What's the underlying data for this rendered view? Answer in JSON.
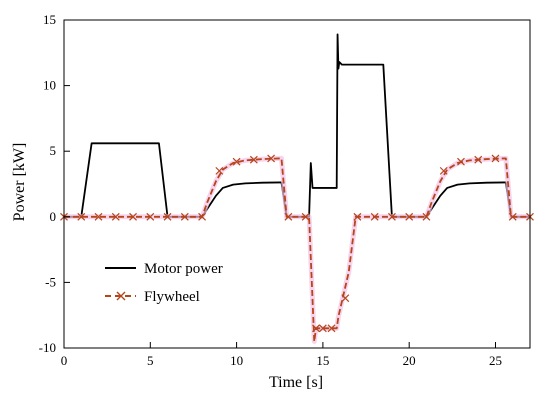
{
  "chart_data": {
    "type": "line",
    "xlabel": "Time [s]",
    "ylabel": "Power [kW]",
    "xlim": [
      0,
      27
    ],
    "ylim": [
      -10,
      15
    ],
    "xticks": [
      0,
      5,
      10,
      15,
      20,
      25
    ],
    "yticks": [
      -10,
      -5,
      0,
      5,
      10,
      15
    ],
    "grid": false,
    "legend_position": "bottom-left",
    "series": [
      {
        "name": "Motor power",
        "color": "#000000",
        "style": "solid",
        "x": [
          0,
          1.0,
          1.6,
          5.5,
          6.0,
          8.0,
          8.3,
          8.8,
          9.2,
          9.8,
          10.5,
          11.5,
          12.5,
          12.6,
          12.9,
          14.2,
          14.3,
          14.4,
          14.5,
          15.8,
          15.85,
          15.9,
          15.95,
          16.1,
          18.5,
          19.0,
          21.0,
          21.3,
          21.8,
          22.2,
          22.8,
          23.5,
          24.5,
          25.5,
          25.6,
          25.9,
          27.0
        ],
        "values": [
          0,
          0,
          5.6,
          5.6,
          0,
          0,
          0.6,
          1.6,
          2.2,
          2.45,
          2.55,
          2.6,
          2.62,
          2.62,
          0,
          0,
          4.1,
          2.2,
          2.2,
          2.2,
          13.9,
          11.3,
          11.8,
          11.6,
          11.6,
          0,
          0,
          0.6,
          1.6,
          2.2,
          2.45,
          2.55,
          2.6,
          2.62,
          2.62,
          0,
          0
        ]
      },
      {
        "name": "Flywheel",
        "color": "#b5451b",
        "style": "dashed",
        "marker": "x",
        "x": [
          0,
          8.0,
          8.3,
          8.8,
          9.2,
          9.8,
          10.5,
          11.5,
          12.5,
          12.6,
          12.9,
          14.2,
          14.5,
          14.6,
          15.8,
          15.9,
          16.5,
          16.9,
          21.0,
          21.3,
          21.8,
          22.2,
          22.8,
          23.5,
          24.5,
          25.5,
          25.6,
          25.9,
          27.0
        ],
        "values": [
          0,
          0,
          1.1,
          2.7,
          3.6,
          4.1,
          4.3,
          4.4,
          4.45,
          4.45,
          0,
          0,
          -9.5,
          -8.5,
          -8.5,
          -7.6,
          -4.2,
          0,
          0,
          1.1,
          2.7,
          3.6,
          4.1,
          4.3,
          4.4,
          4.45,
          4.45,
          0,
          0
        ],
        "marker_x": [
          0,
          1,
          2,
          3,
          4,
          5,
          6,
          7,
          8,
          9.0,
          10.0,
          11.0,
          12.0,
          13,
          14,
          14.6,
          15.0,
          15.5,
          16.3,
          17,
          18,
          19,
          20,
          21,
          22.0,
          23.0,
          24.0,
          25.0,
          26,
          27
        ],
        "marker_values": [
          0,
          0,
          0,
          0,
          0,
          0,
          0,
          0,
          0,
          3.5,
          4.2,
          4.35,
          4.45,
          0,
          0,
          -8.5,
          -8.5,
          -8.5,
          -6.2,
          0,
          0,
          0,
          0,
          0,
          3.5,
          4.2,
          4.35,
          4.45,
          0,
          0
        ]
      }
    ]
  }
}
